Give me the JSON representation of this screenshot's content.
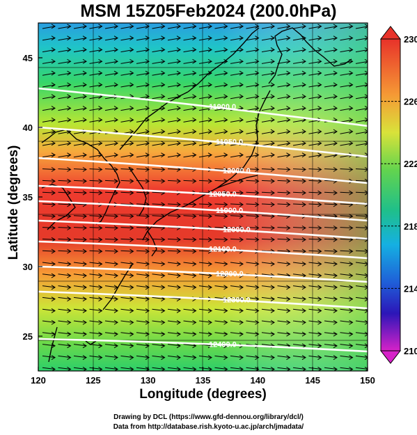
{
  "title": "MSM 15Z05Feb2024 (200.0hPa)",
  "x_axis": {
    "label": "Longitude (degrees)",
    "ticks": [
      "120",
      "125",
      "130",
      "135",
      "140",
      "145",
      "150"
    ],
    "range": [
      120,
      150
    ]
  },
  "y_axis": {
    "label": "Latitude  (degrees)",
    "ticks": [
      "25",
      "30",
      "35",
      "40",
      "45"
    ],
    "range": [
      22.5,
      47.5
    ]
  },
  "colorbar": {
    "ticks": [
      "230",
      "226",
      "222",
      "218",
      "214",
      "210"
    ],
    "range": [
      210,
      230
    ]
  },
  "contours": [
    {
      "label": "11900.0",
      "lat_w": 42.8,
      "lat_e": 40.1
    },
    {
      "label": "11950.0",
      "lat_w": 40.0,
      "lat_e": 37.9
    },
    {
      "label": "12000.0",
      "lat_w": 37.8,
      "lat_e": 36.0
    },
    {
      "label": "12050.0",
      "lat_w": 35.8,
      "lat_e": 34.5
    },
    {
      "label": "11900.0",
      "lat_w": 34.7,
      "lat_e": 33.3
    },
    {
      "label": "12000.0",
      "lat_w": 33.3,
      "lat_e": 32.0
    },
    {
      "label": "12100.0",
      "lat_w": 31.8,
      "lat_e": 30.6
    },
    {
      "label": "12200.0",
      "lat_w": 30.0,
      "lat_e": 28.9
    },
    {
      "label": "12300.0",
      "lat_w": 28.2,
      "lat_e": 27.0
    },
    {
      "label": "12400.0",
      "lat_w": 24.8,
      "lat_e": 23.9
    }
  ],
  "credits": [
    "Drawing by DCL (https://www.gfd-dennou.org/library/dcl/)",
    "Data from http://database.rish.kyoto-u.ac.jp/arch/jmadata/"
  ]
}
